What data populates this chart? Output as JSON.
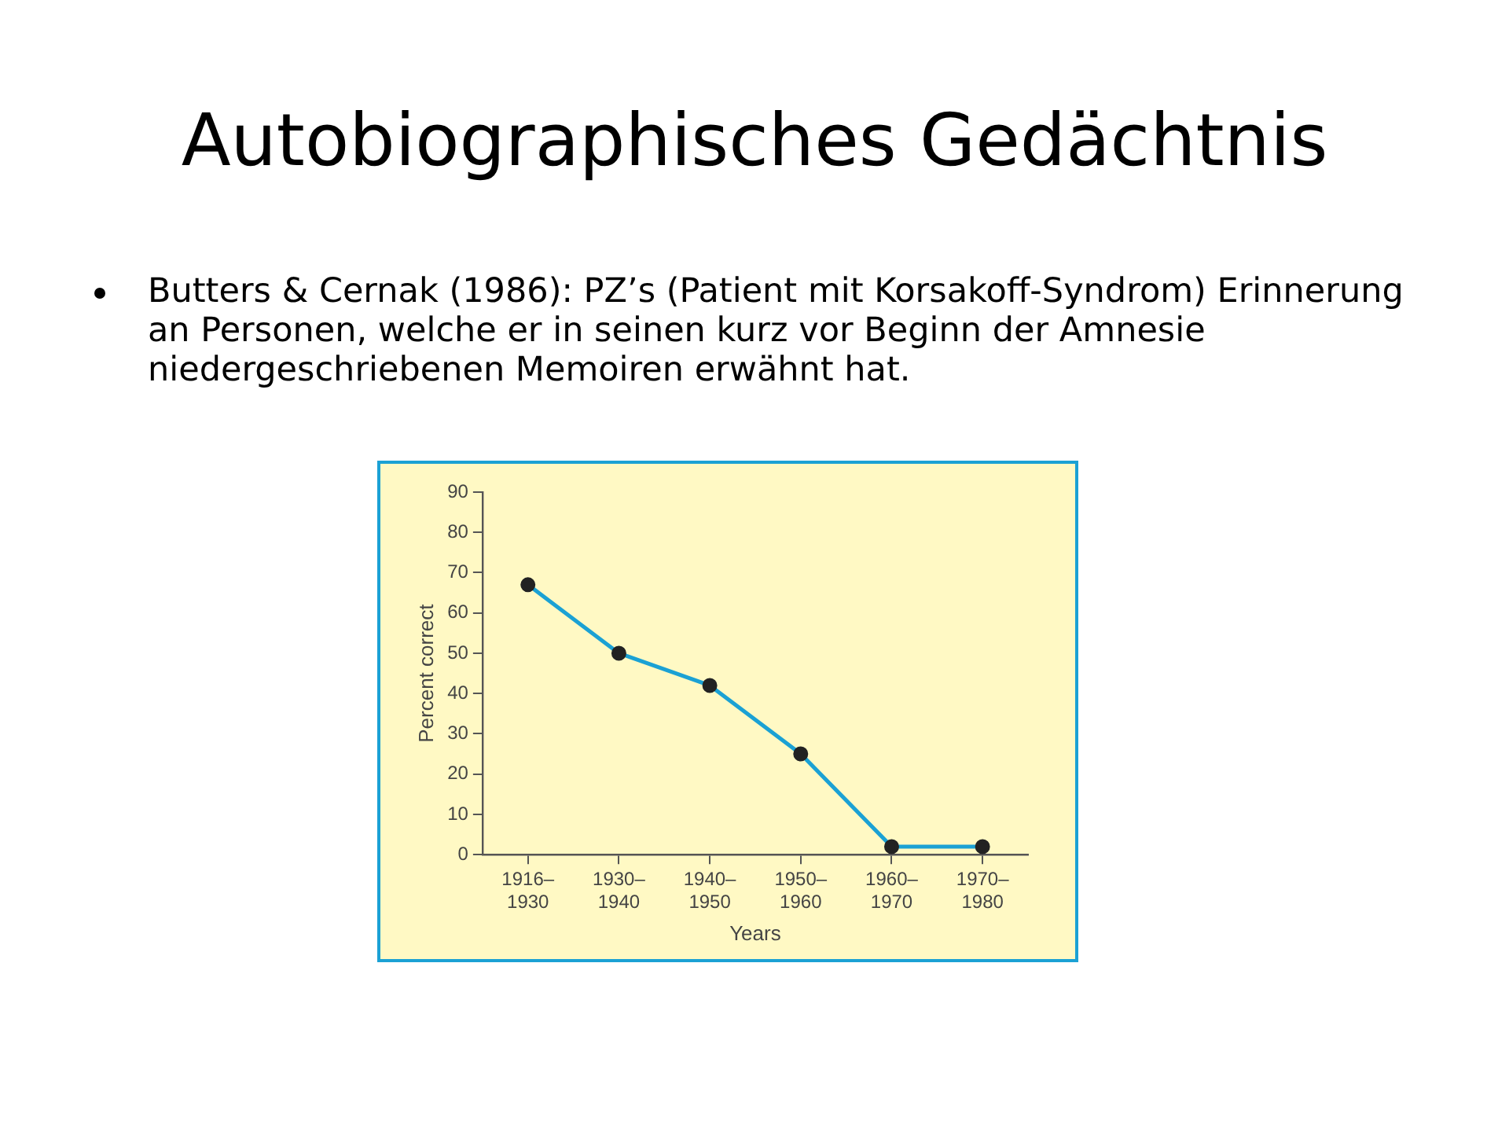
{
  "chart_data": {
    "type": "line",
    "title": "Autobiographisches Gedächtnis",
    "subtitle": "Butters & Cernak (1986): PZ’s (Patient mit Korsakoff-Syndrom) Erinnerung an Personen, welche er in seinen kurz vor Beginn der Amnesie niedergeschriebenen Memoiren erwähnt hat.",
    "xlabel": "Years",
    "ylabel": "Percent correct",
    "categories": [
      "1916–1930",
      "1930–1940",
      "1940–1950",
      "1950–1960",
      "1960–1970",
      "1970–1980"
    ],
    "series": [
      {
        "color": "#1ba1d4",
        "values": [
          67,
          50,
          42,
          25,
          2,
          2
        ]
      }
    ],
    "ylim": [
      0,
      90
    ],
    "yticks": [
      0,
      10,
      20,
      30,
      40,
      50,
      60,
      70,
      80,
      90
    ],
    "grid": false,
    "legend": false,
    "marker": "circle",
    "line_style": "solid"
  }
}
